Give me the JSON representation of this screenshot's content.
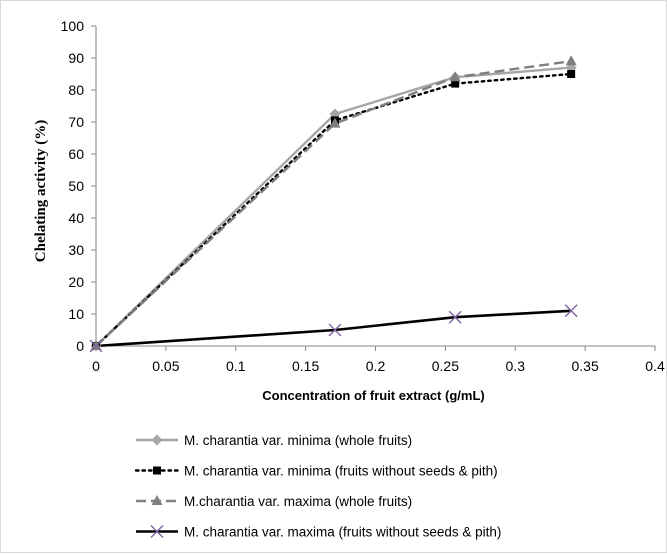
{
  "chart_data": {
    "type": "line",
    "title": "",
    "xlabel": "Concentration of fruit extract (g/mL)",
    "ylabel": "Chelating activity (%)",
    "xlim": [
      0,
      0.4
    ],
    "ylim": [
      0,
      100
    ],
    "x_ticks": [
      "0",
      "0.05",
      "0.1",
      "0.15",
      "0.2",
      "0.25",
      "0.3",
      "0.35",
      "0.4"
    ],
    "y_ticks": [
      "0",
      "10",
      "20",
      "30",
      "40",
      "50",
      "60",
      "70",
      "80",
      "90",
      "100"
    ],
    "grid": false,
    "legend_position": "bottom",
    "series": [
      {
        "name": "M. charantia var. minima (whole fruits)",
        "color": "#a6a6a6",
        "line": "solid",
        "marker": "diamond",
        "x": [
          0,
          0.171,
          0.257,
          0.34
        ],
        "y": [
          0,
          72.5,
          84,
          87
        ]
      },
      {
        "name": "M. charantia var. minima (fruits without seeds & pith)",
        "color": "#000000",
        "line": "dotted",
        "marker": "square",
        "x": [
          0,
          0.171,
          0.257,
          0.34
        ],
        "y": [
          0,
          70.5,
          82,
          85
        ]
      },
      {
        "name": "M.charantia var. maxima (whole fruits)",
        "color": "#7f7f7f",
        "line": "dashed",
        "marker": "triangle",
        "x": [
          0,
          0.171,
          0.257,
          0.34
        ],
        "y": [
          0,
          69.5,
          84,
          89
        ]
      },
      {
        "name": "M. charantia var. maxima (fruits without seeds & pith)",
        "color": "#000000",
        "marker_color": "#8064a2",
        "line": "solid",
        "marker": "x",
        "x": [
          0,
          0.171,
          0.257,
          0.34
        ],
        "y": [
          0,
          5,
          9,
          11
        ]
      }
    ]
  }
}
